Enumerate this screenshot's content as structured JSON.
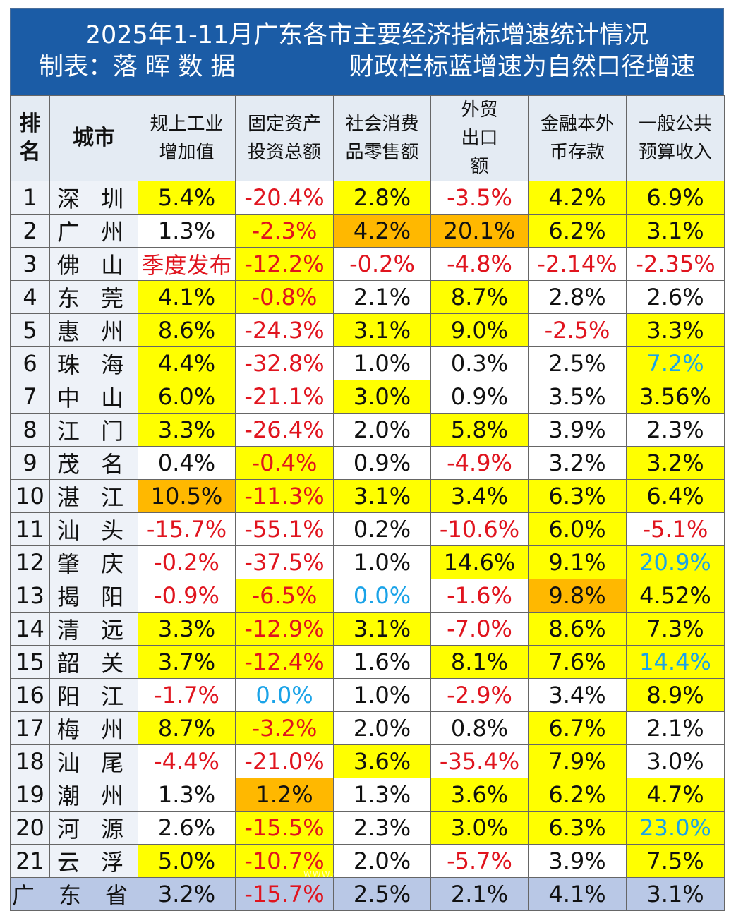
{
  "title": "2025年1-11月广东各市主要经济指标增速统计情况",
  "subtitle_left": "制表：落 晖 数 据",
  "subtitle_right": "财政栏标蓝增速为自然口径增速",
  "headers": [
    "排名",
    "城市",
    "规上工业增加值",
    "固定资产投资总额",
    "社会消费品零售额",
    "外贸出口额",
    "金融本外币存款",
    "一般公共预算收入"
  ],
  "colors": {
    "yellow": "#ffff00",
    "orange": "#ffb800",
    "red": "#e0141e",
    "blue": "#1aa3e8",
    "header_blue": "#1b5ca6",
    "province_bg": "#b9c8e6"
  },
  "rows": [
    [
      "1",
      "深 圳",
      [
        "5.4%",
        "y",
        ""
      ],
      [
        "-20.4%",
        "w",
        "r"
      ],
      [
        "2.8%",
        "y",
        ""
      ],
      [
        "-3.5%",
        "w",
        "r"
      ],
      [
        "4.2%",
        "y",
        ""
      ],
      [
        "6.9%",
        "y",
        ""
      ]
    ],
    [
      "2",
      "广 州",
      [
        "1.3%",
        "w",
        ""
      ],
      [
        "-2.3%",
        "y",
        "r"
      ],
      [
        "4.2%",
        "o",
        ""
      ],
      [
        "20.1%",
        "o",
        ""
      ],
      [
        "6.2%",
        "y",
        ""
      ],
      [
        "3.1%",
        "y",
        ""
      ]
    ],
    [
      "3",
      "佛 山",
      [
        "季度发布",
        "w",
        "r"
      ],
      [
        "-12.2%",
        "y",
        "r"
      ],
      [
        "-0.2%",
        "w",
        "r"
      ],
      [
        "-4.8%",
        "w",
        "r"
      ],
      [
        "-2.14%",
        "w",
        "r"
      ],
      [
        "-2.35%",
        "w",
        "r"
      ]
    ],
    [
      "4",
      "东 莞",
      [
        "4.1%",
        "y",
        ""
      ],
      [
        "-0.8%",
        "y",
        "r"
      ],
      [
        "2.1%",
        "w",
        ""
      ],
      [
        "8.7%",
        "y",
        ""
      ],
      [
        "2.8%",
        "w",
        ""
      ],
      [
        "2.6%",
        "w",
        ""
      ]
    ],
    [
      "5",
      "惠 州",
      [
        "8.6%",
        "y",
        ""
      ],
      [
        "-24.3%",
        "w",
        "r"
      ],
      [
        "3.1%",
        "y",
        ""
      ],
      [
        "9.0%",
        "y",
        ""
      ],
      [
        "-2.5%",
        "w",
        "r"
      ],
      [
        "3.3%",
        "y",
        ""
      ]
    ],
    [
      "6",
      "珠 海",
      [
        "4.4%",
        "y",
        ""
      ],
      [
        "-32.8%",
        "w",
        "r"
      ],
      [
        "1.0%",
        "w",
        ""
      ],
      [
        "0.3%",
        "w",
        ""
      ],
      [
        "2.5%",
        "w",
        ""
      ],
      [
        "7.2%",
        "y",
        "bl"
      ]
    ],
    [
      "7",
      "中 山",
      [
        "6.0%",
        "y",
        ""
      ],
      [
        "-21.1%",
        "w",
        "r"
      ],
      [
        "3.0%",
        "y",
        ""
      ],
      [
        "0.9%",
        "w",
        ""
      ],
      [
        "3.5%",
        "w",
        ""
      ],
      [
        "3.56%",
        "y",
        ""
      ]
    ],
    [
      "8",
      "江 门",
      [
        "3.3%",
        "y",
        ""
      ],
      [
        "-26.4%",
        "w",
        "r"
      ],
      [
        "2.0%",
        "w",
        ""
      ],
      [
        "5.8%",
        "y",
        ""
      ],
      [
        "3.9%",
        "w",
        ""
      ],
      [
        "2.3%",
        "w",
        ""
      ]
    ],
    [
      "9",
      "茂 名",
      [
        "0.4%",
        "w",
        ""
      ],
      [
        "-0.4%",
        "y",
        "r"
      ],
      [
        "0.9%",
        "w",
        ""
      ],
      [
        "-4.9%",
        "w",
        "r"
      ],
      [
        "3.2%",
        "w",
        ""
      ],
      [
        "3.2%",
        "y",
        ""
      ]
    ],
    [
      "10",
      "湛 江",
      [
        "10.5%",
        "o",
        ""
      ],
      [
        "-11.3%",
        "y",
        "r"
      ],
      [
        "3.1%",
        "y",
        ""
      ],
      [
        "3.4%",
        "y",
        ""
      ],
      [
        "6.3%",
        "y",
        ""
      ],
      [
        "6.4%",
        "y",
        ""
      ]
    ],
    [
      "11",
      "汕 头",
      [
        "-15.7%",
        "w",
        "r"
      ],
      [
        "-55.1%",
        "w",
        "r"
      ],
      [
        "0.2%",
        "w",
        ""
      ],
      [
        "-10.6%",
        "w",
        "r"
      ],
      [
        "6.0%",
        "y",
        ""
      ],
      [
        "-5.1%",
        "w",
        "r"
      ]
    ],
    [
      "12",
      "肇 庆",
      [
        "-0.2%",
        "w",
        "r"
      ],
      [
        "-37.5%",
        "w",
        "r"
      ],
      [
        "1.0%",
        "w",
        ""
      ],
      [
        "14.6%",
        "y",
        ""
      ],
      [
        "9.1%",
        "y",
        ""
      ],
      [
        "20.9%",
        "y",
        "bl"
      ]
    ],
    [
      "13",
      "揭 阳",
      [
        "-0.9%",
        "w",
        "r"
      ],
      [
        "-6.5%",
        "y",
        "r"
      ],
      [
        "0.0%",
        "w",
        "bl"
      ],
      [
        "-1.6%",
        "w",
        "r"
      ],
      [
        "9.8%",
        "o",
        ""
      ],
      [
        "4.52%",
        "y",
        ""
      ]
    ],
    [
      "14",
      "清 远",
      [
        "3.3%",
        "y",
        ""
      ],
      [
        "-12.9%",
        "y",
        "r"
      ],
      [
        "3.1%",
        "y",
        ""
      ],
      [
        "-7.0%",
        "w",
        "r"
      ],
      [
        "8.6%",
        "y",
        ""
      ],
      [
        "7.3%",
        "y",
        ""
      ]
    ],
    [
      "15",
      "韶 关",
      [
        "3.7%",
        "y",
        ""
      ],
      [
        "-12.4%",
        "y",
        "r"
      ],
      [
        "1.6%",
        "w",
        ""
      ],
      [
        "8.1%",
        "y",
        ""
      ],
      [
        "7.6%",
        "y",
        ""
      ],
      [
        "14.4%",
        "y",
        "bl"
      ]
    ],
    [
      "16",
      "阳 江",
      [
        "-1.7%",
        "w",
        "r"
      ],
      [
        "0.0%",
        "w",
        "bl"
      ],
      [
        "1.0%",
        "w",
        ""
      ],
      [
        "-2.9%",
        "w",
        "r"
      ],
      [
        "3.4%",
        "w",
        ""
      ],
      [
        "8.9%",
        "y",
        ""
      ]
    ],
    [
      "17",
      "梅 州",
      [
        "8.7%",
        "y",
        ""
      ],
      [
        "-3.2%",
        "y",
        "r"
      ],
      [
        "2.0%",
        "w",
        ""
      ],
      [
        "0.8%",
        "w",
        ""
      ],
      [
        "6.7%",
        "y",
        ""
      ],
      [
        "2.1%",
        "w",
        ""
      ]
    ],
    [
      "18",
      "汕 尾",
      [
        "-4.4%",
        "w",
        "r"
      ],
      [
        "-21.0%",
        "w",
        "r"
      ],
      [
        "3.6%",
        "y",
        ""
      ],
      [
        "-35.4%",
        "w",
        "r"
      ],
      [
        "7.9%",
        "y",
        ""
      ],
      [
        "3.0%",
        "w",
        ""
      ]
    ],
    [
      "19",
      "潮 州",
      [
        "1.3%",
        "w",
        ""
      ],
      [
        "1.2%",
        "o",
        ""
      ],
      [
        "1.3%",
        "w",
        ""
      ],
      [
        "3.6%",
        "y",
        ""
      ],
      [
        "6.2%",
        "y",
        ""
      ],
      [
        "4.7%",
        "y",
        ""
      ]
    ],
    [
      "20",
      "河 源",
      [
        "2.6%",
        "w",
        ""
      ],
      [
        "-15.5%",
        "y",
        "r"
      ],
      [
        "2.3%",
        "w",
        ""
      ],
      [
        "3.0%",
        "y",
        ""
      ],
      [
        "6.3%",
        "y",
        ""
      ],
      [
        "23.0%",
        "y",
        "bl"
      ]
    ],
    [
      "21",
      "云 浮",
      [
        "5.0%",
        "y",
        ""
      ],
      [
        "-10.7%",
        "y",
        "r"
      ],
      [
        "2.0%",
        "w",
        ""
      ],
      [
        "-5.7%",
        "w",
        "r"
      ],
      [
        "3.9%",
        "w",
        ""
      ],
      [
        "7.5%",
        "y",
        ""
      ]
    ]
  ],
  "province": {
    "name": "广 东 省",
    "values": [
      [
        "3.2%",
        ""
      ],
      [
        "-15.7%",
        "r"
      ],
      [
        "2.5%",
        ""
      ],
      [
        "2.1%",
        ""
      ],
      [
        "4.1%",
        ""
      ],
      [
        "3.1%",
        ""
      ]
    ]
  },
  "watermark": "WWW.GDMM.COM"
}
